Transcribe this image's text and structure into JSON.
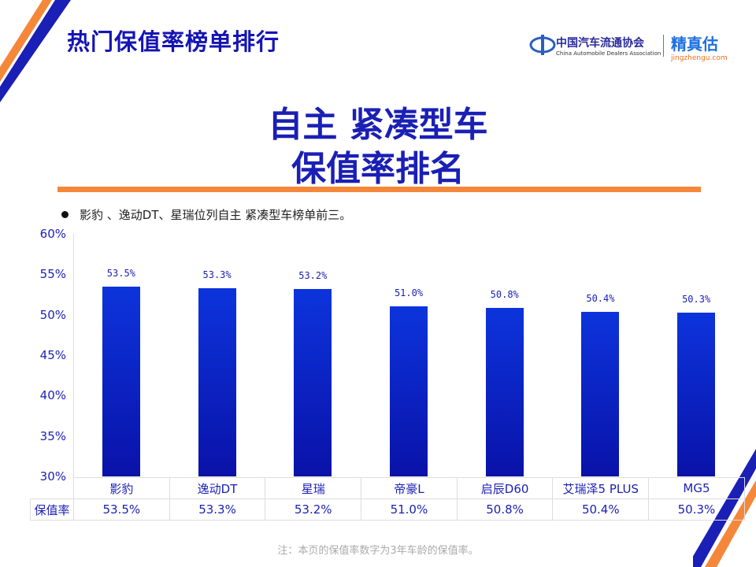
{
  "header": {
    "title": "热门保值率榜单排行"
  },
  "logos": {
    "cada_cn": "中国汽车流通协会",
    "cada_en": "China Automobile Dealers Association",
    "jzg_cn": "精真估",
    "jzg_en": "jingzhengu.com"
  },
  "main_title": {
    "line1": "自主 紧凑型车",
    "line2": "保值率排名"
  },
  "bullet": "影豹 、逸动DT、星瑞位列自主 紧凑型车榜单前三。",
  "table": {
    "row_label": "保值率",
    "values": [
      "53.5%",
      "53.3%",
      "53.2%",
      "51.0%",
      "50.8%",
      "50.4%",
      "50.3%"
    ]
  },
  "note": "注：本页的保值率数字为3年车龄的保值率。",
  "colors": {
    "bar": "#0c34dc",
    "accent": "#f5873a",
    "title": "#1a1fb5"
  },
  "chart_data": {
    "type": "bar",
    "categories": [
      "影豹",
      "逸动DT",
      "星瑞",
      "帝豪L",
      "启辰D60",
      "艾瑞泽5 PLUS",
      "MG5"
    ],
    "values": [
      53.5,
      53.3,
      53.2,
      51.0,
      50.8,
      50.4,
      50.3
    ],
    "data_labels": [
      "53.5%",
      "53.3%",
      "53.2%",
      "51.0%",
      "50.8%",
      "50.4%",
      "50.3%"
    ],
    "yticks": [
      "30%",
      "35%",
      "40%",
      "45%",
      "50%",
      "55%",
      "60%"
    ],
    "ylim": [
      30,
      60
    ],
    "ylabel": "",
    "xlabel": "",
    "title": ""
  }
}
